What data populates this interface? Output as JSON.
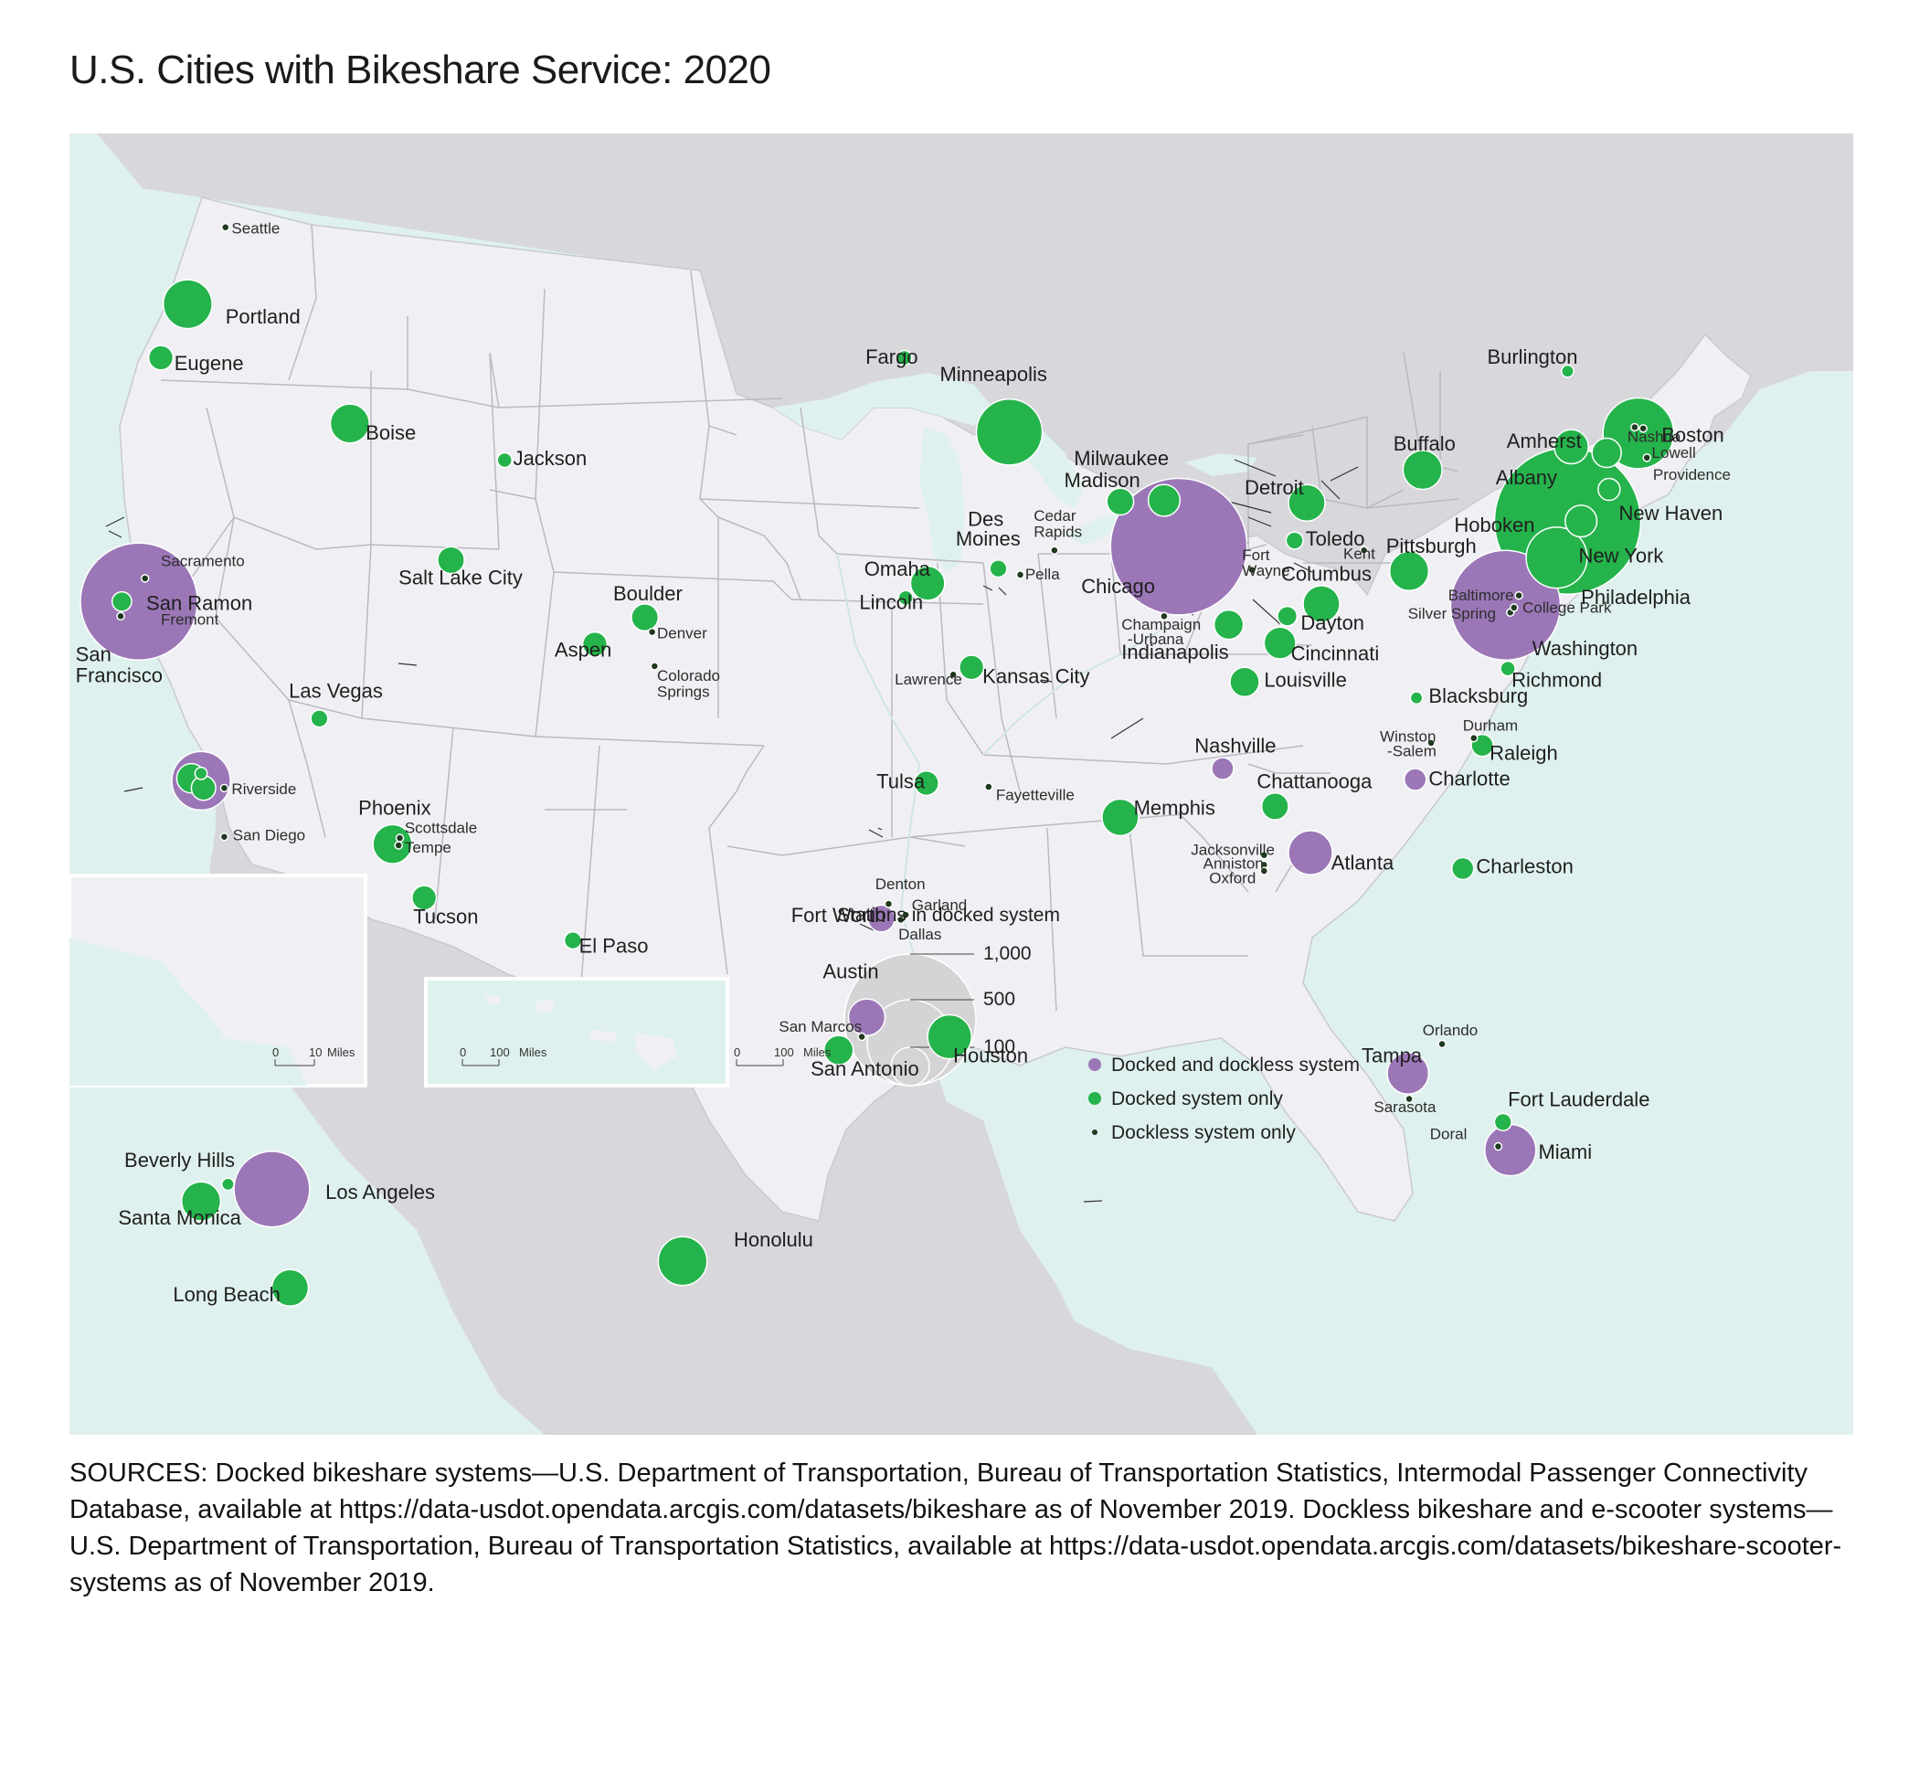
{
  "title": "U.S. Cities with Bikeshare Service: 2020",
  "colors": {
    "water": "#dff1ee",
    "land_us": "#f0f0f4",
    "land_other": "#d7d7dc",
    "state_border": "#b9b9c2",
    "docked_and_dockless": "#9b77b7",
    "docked_only": "#25b34b",
    "dockless_only": "#1f3a1f",
    "legend_circle": "#d4d4d6"
  },
  "legend": {
    "size_title": "Stations in docked system",
    "size_labels": [
      "1,000",
      "500",
      "100"
    ],
    "categories": [
      {
        "label": "Docked and dockless system",
        "type": "docked_and_dockless"
      },
      {
        "label": "Docked system only",
        "type": "docked_only"
      },
      {
        "label": "Dockless system only",
        "type": "dockless_only"
      }
    ]
  },
  "scale_bars": {
    "inset_la": {
      "zero": "0",
      "value": "10",
      "unit": "Miles"
    },
    "inset_hawaii": {
      "zero": "0",
      "value": "100",
      "unit": "Miles"
    },
    "main": {
      "zero": "0",
      "value": "100",
      "unit": "Miles"
    }
  },
  "cities": [
    {
      "name": "Seattle",
      "type": "dockless_only"
    },
    {
      "name": "Portland",
      "type": "docked_only"
    },
    {
      "name": "Eugene",
      "type": "docked_only"
    },
    {
      "name": "Boise",
      "type": "docked_only"
    },
    {
      "name": "Jackson",
      "type": "docked_only"
    },
    {
      "name": "Salt Lake City",
      "type": "docked_only"
    },
    {
      "name": "Sacramento",
      "type": "dockless_only"
    },
    {
      "name": "San Ramon",
      "type": "docked_only"
    },
    {
      "name": "Fremont",
      "type": "dockless_only"
    },
    {
      "name": "San Francisco",
      "type": "docked_and_dockless"
    },
    {
      "name": "Las Vegas",
      "type": "docked_only"
    },
    {
      "name": "Riverside",
      "type": "dockless_only"
    },
    {
      "name": "San Diego",
      "type": "dockless_only"
    },
    {
      "name": "Phoenix",
      "type": "docked_only"
    },
    {
      "name": "Scottsdale",
      "type": "dockless_only"
    },
    {
      "name": "Tempe",
      "type": "dockless_only"
    },
    {
      "name": "Tucson",
      "type": "docked_only"
    },
    {
      "name": "El Paso",
      "type": "docked_only"
    },
    {
      "name": "Boulder",
      "type": "docked_only"
    },
    {
      "name": "Denver",
      "type": "dockless_only"
    },
    {
      "name": "Aspen",
      "type": "docked_only"
    },
    {
      "name": "Colorado Springs",
      "type": "dockless_only"
    },
    {
      "name": "Fargo",
      "type": "docked_only"
    },
    {
      "name": "Minneapolis",
      "type": "docked_only"
    },
    {
      "name": "Madison",
      "type": "docked_only"
    },
    {
      "name": "Milwaukee",
      "type": "docked_only"
    },
    {
      "name": "Chicago",
      "type": "docked_and_dockless"
    },
    {
      "name": "Des Moines",
      "type": "docked_only"
    },
    {
      "name": "Cedar Rapids",
      "type": "dockless_only"
    },
    {
      "name": "Pella",
      "type": "dockless_only"
    },
    {
      "name": "Omaha",
      "type": "docked_only"
    },
    {
      "name": "Lincoln",
      "type": "docked_only"
    },
    {
      "name": "Kansas City",
      "type": "docked_only"
    },
    {
      "name": "Lawrence",
      "type": "dockless_only"
    },
    {
      "name": "Tulsa",
      "type": "docked_only"
    },
    {
      "name": "Fayetteville",
      "type": "dockless_only"
    },
    {
      "name": "Fort Worth",
      "type": "docked_and_dockless"
    },
    {
      "name": "Denton",
      "type": "dockless_only"
    },
    {
      "name": "Garland",
      "type": "dockless_only"
    },
    {
      "name": "Dallas",
      "type": "dockless_only"
    },
    {
      "name": "Austin",
      "type": "docked_and_dockless"
    },
    {
      "name": "San Marcos",
      "type": "dockless_only"
    },
    {
      "name": "San Antonio",
      "type": "docked_only"
    },
    {
      "name": "Houston",
      "type": "docked_only"
    },
    {
      "name": "Detroit",
      "type": "docked_only"
    },
    {
      "name": "Toledo",
      "type": "docked_only"
    },
    {
      "name": "Fort Wayne",
      "type": "dockless_only"
    },
    {
      "name": "Champaign-Urbana",
      "type": "dockless_only"
    },
    {
      "name": "Indianapolis",
      "type": "docked_only"
    },
    {
      "name": "Columbus",
      "type": "docked_only"
    },
    {
      "name": "Dayton",
      "type": "docked_only"
    },
    {
      "name": "Cincinnati",
      "type": "docked_only"
    },
    {
      "name": "Louisville",
      "type": "docked_only"
    },
    {
      "name": "Kent",
      "type": "dockless_only"
    },
    {
      "name": "Pittsburgh",
      "type": "docked_only"
    },
    {
      "name": "Buffalo",
      "type": "docked_only"
    },
    {
      "name": "Nashville",
      "type": "docked_and_dockless"
    },
    {
      "name": "Memphis",
      "type": "docked_only"
    },
    {
      "name": "Chattanooga",
      "type": "docked_only"
    },
    {
      "name": "Jacksonville",
      "type": "dockless_only"
    },
    {
      "name": "Anniston",
      "type": "dockless_only"
    },
    {
      "name": "Oxford",
      "type": "dockless_only"
    },
    {
      "name": "Atlanta",
      "type": "docked_and_dockless"
    },
    {
      "name": "Charlotte",
      "type": "docked_and_dockless"
    },
    {
      "name": "Winston-Salem",
      "type": "dockless_only"
    },
    {
      "name": "Durham",
      "type": "dockless_only"
    },
    {
      "name": "Raleigh",
      "type": "docked_only"
    },
    {
      "name": "Charleston",
      "type": "docked_only"
    },
    {
      "name": "Blacksburg",
      "type": "docked_only"
    },
    {
      "name": "Richmond",
      "type": "docked_only"
    },
    {
      "name": "Washington",
      "type": "docked_and_dockless"
    },
    {
      "name": "Baltimore",
      "type": "dockless_only"
    },
    {
      "name": "Silver Spring",
      "type": "dockless_only"
    },
    {
      "name": "College Park",
      "type": "dockless_only"
    },
    {
      "name": "Philadelphia",
      "type": "docked_only"
    },
    {
      "name": "New York",
      "type": "docked_only"
    },
    {
      "name": "Hoboken",
      "type": "docked_only"
    },
    {
      "name": "New Haven",
      "type": "docked_only"
    },
    {
      "name": "Albany",
      "type": "docked_only"
    },
    {
      "name": "Amherst",
      "type": "docked_only"
    },
    {
      "name": "Burlington",
      "type": "docked_only"
    },
    {
      "name": "Boston",
      "type": "docked_only"
    },
    {
      "name": "Nashua",
      "type": "dockless_only"
    },
    {
      "name": "Lowell",
      "type": "dockless_only"
    },
    {
      "name": "Providence",
      "type": "dockless_only"
    },
    {
      "name": "Orlando",
      "type": "dockless_only"
    },
    {
      "name": "Tampa",
      "type": "docked_and_dockless"
    },
    {
      "name": "Sarasota",
      "type": "dockless_only"
    },
    {
      "name": "Fort Lauderdale",
      "type": "docked_only"
    },
    {
      "name": "Miami",
      "type": "docked_and_dockless"
    },
    {
      "name": "Doral",
      "type": "dockless_only"
    },
    {
      "name": "Beverly Hills",
      "type": "docked_only"
    },
    {
      "name": "Los Angeles",
      "type": "docked_and_dockless"
    },
    {
      "name": "Santa Monica",
      "type": "docked_only"
    },
    {
      "name": "Long Beach",
      "type": "docked_only"
    },
    {
      "name": "Honolulu",
      "type": "docked_only"
    }
  ],
  "labels": {
    "Seattle": "Seattle",
    "Portland": "Portland",
    "Eugene": "Eugene",
    "Boise": "Boise",
    "Jackson": "Jackson",
    "Salt Lake City": "Salt Lake City",
    "Sacramento": "Sacramento",
    "San Ramon": "San Ramon",
    "Fremont": "Fremont",
    "San Francisco 1": "San",
    "San Francisco 2": "Francisco",
    "Las Vegas": "Las Vegas",
    "Riverside": "Riverside",
    "San Diego": "San Diego",
    "Phoenix": "Phoenix",
    "Scottsdale": "Scottsdale",
    "Tempe": "Tempe",
    "Tucson": "Tucson",
    "El Paso": "El Paso",
    "Boulder": "Boulder",
    "Denver": "Denver",
    "Aspen": "Aspen",
    "Colorado Springs 1": "Colorado",
    "Colorado Springs 2": "Springs",
    "Fargo": "Fargo",
    "Minneapolis": "Minneapolis",
    "Madison": "Madison",
    "Milwaukee": "Milwaukee",
    "Chicago": "Chicago",
    "Des Moines 1": "Des",
    "Des Moines 2": "Moines",
    "Cedar Rapids 1": "Cedar",
    "Cedar Rapids 2": "Rapids",
    "Pella": "Pella",
    "Omaha": "Omaha",
    "Lincoln": "Lincoln",
    "Kansas City": "Kansas City",
    "Lawrence": "Lawrence",
    "Tulsa": "Tulsa",
    "Fayetteville": "Fayetteville",
    "Fort Worth": "Fort Worth",
    "Denton": "Denton",
    "Garland": "Garland",
    "Dallas": "Dallas",
    "Austin": "Austin",
    "San Marcos": "San Marcos",
    "San Antonio": "San Antonio",
    "Houston": "Houston",
    "Detroit": "Detroit",
    "Toledo": "Toledo",
    "Fort Wayne 1": "Fort",
    "Fort Wayne 2": "Wayne",
    "Champaign 1": "Champaign",
    "Champaign 2": "-Urbana",
    "Indianapolis": "Indianapolis",
    "Columbus": "Columbus",
    "Dayton": "Dayton",
    "Cincinnati": "Cincinnati",
    "Louisville": "Louisville",
    "Kent": "Kent",
    "Pittsburgh": "Pittsburgh",
    "Buffalo": "Buffalo",
    "Nashville": "Nashville",
    "Memphis": "Memphis",
    "Chattanooga": "Chattanooga",
    "Jacksonville": "Jacksonville",
    "Anniston": "Anniston",
    "Oxford": "Oxford",
    "Atlanta": "Atlanta",
    "Charlotte": "Charlotte",
    "Winston 1": "Winston",
    "Winston 2": "-Salem",
    "Durham": "Durham",
    "Raleigh": "Raleigh",
    "Charleston": "Charleston",
    "Blacksburg": "Blacksburg",
    "Richmond": "Richmond",
    "Washington": "Washington",
    "Baltimore": "Baltimore",
    "Silver Spring": "Silver Spring",
    "College Park": "College Park",
    "Philadelphia": "Philadelphia",
    "New York": "New York",
    "Hoboken": "Hoboken",
    "New Haven": "New Haven",
    "Albany": "Albany",
    "Amherst": "Amherst",
    "Burlington": "Burlington",
    "Boston": "Boston",
    "Nashua": "Nashua",
    "Lowell": "Lowell",
    "Providence": "Providence",
    "Orlando": "Orlando",
    "Tampa": "Tampa",
    "Sarasota": "Sarasota",
    "Fort Lauderdale": "Fort Lauderdale",
    "Miami": "Miami",
    "Doral": "Doral",
    "Beverly Hills": "Beverly Hills",
    "Los Angeles": "Los Angeles",
    "Santa Monica": "Santa Monica",
    "Long Beach": "Long Beach",
    "Honolulu": "Honolulu"
  },
  "sources": "SOURCES: Docked bikeshare systems—U.S. Department of Transportation, Bureau of Transportation Statistics, Intermodal Passenger Connectivity Database, available at https://data-usdot.opendata.arcgis.com/datasets/bikeshare as of November 2019. Dockless bikeshare and e-scooter systems—U.S. Department of Transportation, Bureau of Transportation Statistics, available at https://data-usdot.opendata.arcgis.com/datasets/bikeshare-scooter-systems as of November 2019."
}
